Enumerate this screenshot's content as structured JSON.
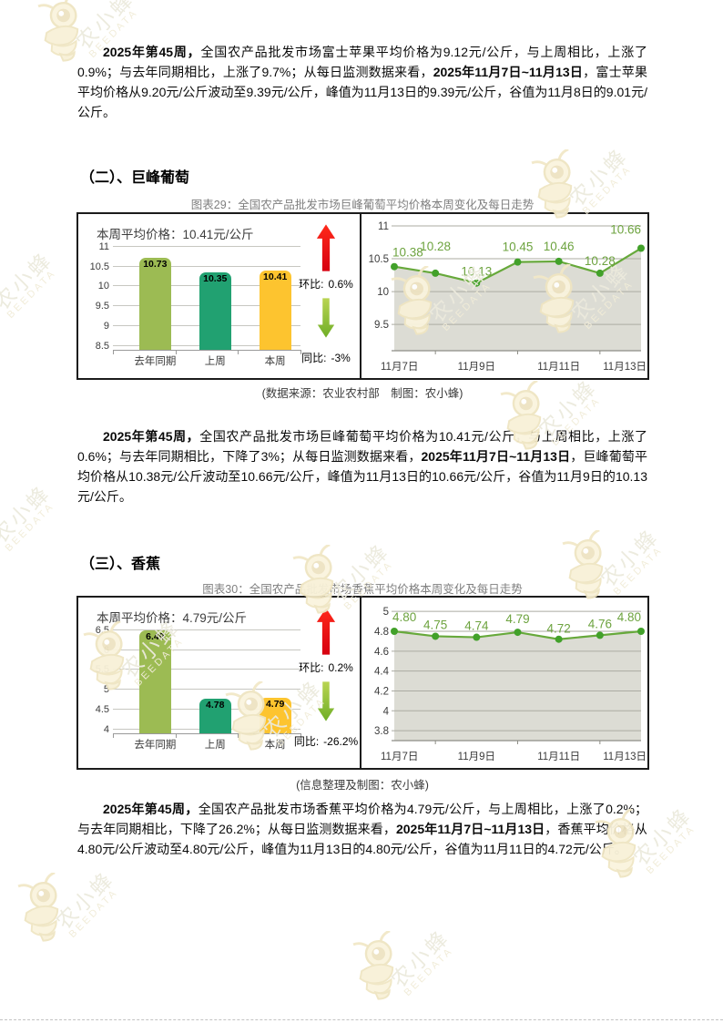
{
  "watermark": {
    "name": "农小蜂",
    "brand": "BEEDATA"
  },
  "paragraphs": [
    {
      "runs": [
        {
          "b": true,
          "t": "2025年第45周，"
        },
        {
          "b": false,
          "t": "全国农产品批发市场富士苹果平均价格为9.12元/公斤，与上周相比，上涨了0.9%；与去年同期相比，上涨了9.7%；从每日监测数据来看，"
        },
        {
          "b": true,
          "t": "2025年11月7日~11月13日"
        },
        {
          "b": false,
          "t": "，富士苹果平均价格从9.20元/公斤波动至9.39元/公斤，峰值为11月13日的9.39元/公斤，谷值为11月8日的9.01元/公斤。"
        }
      ]
    },
    {
      "runs": [
        {
          "b": true,
          "t": "2025年第45周，"
        },
        {
          "b": false,
          "t": "全国农产品批发市场巨峰葡萄平均价格为10.41元/公斤，与上周相比，上涨了0.6%；与去年同期相比，下降了3%；从每日监测数据来看，"
        },
        {
          "b": true,
          "t": "2025年11月7日~11月13日"
        },
        {
          "b": false,
          "t": "，巨峰葡萄平均价格从10.38元/公斤波动至10.66元/公斤，峰值为11月13日的10.66元/公斤，谷值为11月9日的10.13元/公斤。"
        }
      ]
    },
    {
      "runs": [
        {
          "b": true,
          "t": "2025年第45周，"
        },
        {
          "b": false,
          "t": "全国农产品批发市场香蕉平均价格为4.79元/公斤，与上周相比，上涨了0.2%；与去年同期相比，下降了26.2%；从每日监测数据来看，"
        },
        {
          "b": true,
          "t": "2025年11月7日~11月13日"
        },
        {
          "b": false,
          "t": "，香蕉平均价格从4.80元/公斤波动至4.80元/公斤，峰值为11月13日的4.80元/公斤，谷值为11月11日的4.72元/公斤。"
        }
      ]
    }
  ],
  "sections": [
    {
      "heading": "（二）、巨峰葡萄",
      "figure_caption": "图表29：全国农产品批发市场巨峰葡萄平均价格本周变化及每日走势",
      "source_note": "(数据来源：农业农村部　制图：农小蜂)"
    },
    {
      "heading": "（三）、香蕉",
      "figure_caption": "图表30：全国农产品批发市场香蕉平均价格本周变化及每日走势",
      "source_note": "(信息整理及制图：农小蜂)"
    }
  ],
  "chart_data": [
    {
      "type": "bar",
      "title": "本周平均价格：10.41元/公斤",
      "categories": [
        "去年同期",
        "上周",
        "本周"
      ],
      "values": [
        10.73,
        10.35,
        10.41
      ],
      "colors": [
        "#9cbb53",
        "#21a171",
        "#fdc42f"
      ],
      "yticks": [
        8.5,
        9,
        9.5,
        10,
        10.5,
        11
      ],
      "ylim": [
        8.4,
        11
      ],
      "huanbi": {
        "label": "环比:",
        "value": "0.6%"
      },
      "tongbi": {
        "label": "同比:",
        "value": "-3%"
      }
    },
    {
      "type": "line",
      "x": [
        "11月7日",
        "11月8日",
        "11月9日",
        "11月10日",
        "11月11日",
        "11月12日",
        "11月13日"
      ],
      "x_tick_labels": [
        "11月7日",
        "11月9日",
        "11月11日",
        "11月13日"
      ],
      "values": [
        10.38,
        10.28,
        10.13,
        10.45,
        10.46,
        10.28,
        10.66
      ],
      "yticks": [
        9.5,
        10,
        10.5,
        11
      ],
      "ylim": [
        9.1,
        11
      ],
      "line_color": "#67a93b",
      "marker_color": "#42a12a",
      "area_color": "#dcdcd4"
    },
    {
      "type": "bar",
      "title": "本周平均价格：4.79元/公斤",
      "categories": [
        "去年同期",
        "上周",
        "本周"
      ],
      "values": [
        6.49,
        4.78,
        4.79
      ],
      "colors": [
        "#9cbb53",
        "#21a171",
        "#fdc42f"
      ],
      "yticks": [
        4,
        4.5,
        5,
        5.5,
        6,
        6.5
      ],
      "ylim": [
        3.9,
        6.5
      ],
      "huanbi": {
        "label": "环比:",
        "value": "0.2%"
      },
      "tongbi": {
        "label": "同比:",
        "value": "-26.2%"
      }
    },
    {
      "type": "line",
      "x": [
        "11月7日",
        "11月8日",
        "11月9日",
        "11月10日",
        "11月11日",
        "11月12日",
        "11月13日"
      ],
      "x_tick_labels": [
        "11月7日",
        "11月9日",
        "11月11日",
        "11月13日"
      ],
      "values": [
        4.8,
        4.75,
        4.74,
        4.79,
        4.72,
        4.76,
        4.8
      ],
      "yticks": [
        3.8,
        4,
        4.2,
        4.4,
        4.6,
        4.8,
        5
      ],
      "ylim": [
        3.7,
        5.02
      ],
      "line_color": "#67a93b",
      "marker_color": "#42a12a",
      "area_color": "#dcdcd4"
    }
  ]
}
